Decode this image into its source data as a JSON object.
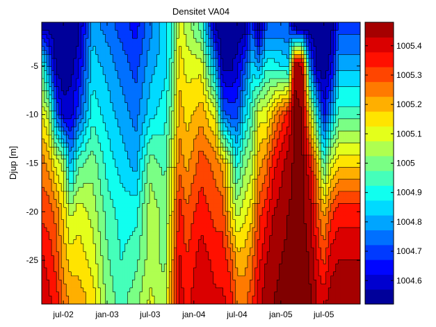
{
  "chart_data": {
    "type": "heatmap",
    "subtype": "filled-contour",
    "title": "Densitet VA04",
    "xlabel": "",
    "ylabel": "Djup [m]",
    "x_ticks": [
      "jul-02",
      "jan-03",
      "jul-03",
      "jan-04",
      "jul-04",
      "jan-05",
      "jul-05"
    ],
    "y_ticks": [
      -5,
      -10,
      -15,
      -20,
      -25
    ],
    "ylim": [
      -29.5,
      -0.5
    ],
    "colorbar": {
      "ticks": [
        "1005.4",
        "1005.3",
        "1005.2",
        "1005.1",
        "1005",
        "1004.9",
        "1004.8",
        "1004.7",
        "1004.6"
      ],
      "range": [
        1004.52,
        1005.48
      ],
      "colormap": "jet"
    },
    "depths": [
      -1,
      -5,
      -10,
      -15,
      -20,
      -25,
      -29
    ],
    "profiles": [
      {
        "date": "2002-04",
        "values": [
          1004.55,
          1004.95,
          1005.12,
          1005.25,
          1005.3,
          1005.38,
          1005.42
        ]
      },
      {
        "date": "2002-05",
        "values": [
          1004.55,
          1004.75,
          1005.05,
          1005.2,
          1005.3,
          1005.35,
          1005.38
        ]
      },
      {
        "date": "2002-06",
        "values": [
          1004.52,
          1004.55,
          1004.75,
          1005.1,
          1005.25,
          1005.3,
          1005.35
        ]
      },
      {
        "date": "2002-07",
        "values": [
          1004.52,
          1004.52,
          1004.6,
          1005.05,
          1005.15,
          1005.2,
          1005.25
        ]
      },
      {
        "date": "2002-08",
        "values": [
          1004.52,
          1004.55,
          1004.6,
          1004.8,
          1005.05,
          1005.15,
          1005.2
        ]
      },
      {
        "date": "2002-09",
        "values": [
          1004.55,
          1004.6,
          1004.7,
          1004.95,
          1005.1,
          1005.15,
          1005.2
        ]
      },
      {
        "date": "2002-11",
        "values": [
          1004.8,
          1004.85,
          1004.9,
          1005.0,
          1005.05,
          1005.1,
          1005.15
        ]
      },
      {
        "date": "2003-01",
        "values": [
          1004.75,
          1004.8,
          1004.85,
          1004.9,
          1004.95,
          1004.98,
          1005.0
        ]
      },
      {
        "date": "2003-03",
        "values": [
          1004.7,
          1004.75,
          1004.8,
          1004.85,
          1004.9,
          1004.92,
          1004.95
        ]
      },
      {
        "date": "2003-05",
        "values": [
          1004.65,
          1004.7,
          1004.75,
          1004.8,
          1004.9,
          1004.95,
          1005.0
        ]
      },
      {
        "date": "2003-07",
        "values": [
          1004.75,
          1004.8,
          1004.85,
          1005.0,
          1005.05,
          1005.05,
          1005.08
        ]
      },
      {
        "date": "2003-09",
        "values": [
          1004.85,
          1004.85,
          1004.9,
          1004.95,
          1005.0,
          1005.0,
          1005.05
        ]
      },
      {
        "date": "2003-10",
        "values": [
          1004.9,
          1004.95,
          1005.0,
          1005.1,
          1005.15,
          1005.2,
          1005.25
        ]
      },
      {
        "date": "2003-11",
        "values": [
          1005.1,
          1005.15,
          1005.2,
          1005.25,
          1005.35,
          1005.38,
          1005.4
        ]
      },
      {
        "date": "2003-12",
        "values": [
          1005.05,
          1005.1,
          1005.15,
          1005.2,
          1005.28,
          1005.32,
          1005.35
        ]
      },
      {
        "date": "2004-02",
        "values": [
          1004.95,
          1005.1,
          1005.2,
          1005.3,
          1005.35,
          1005.4,
          1005.42
        ]
      },
      {
        "date": "2004-04",
        "values": [
          1004.55,
          1004.8,
          1005.1,
          1005.25,
          1005.3,
          1005.35,
          1005.38
        ]
      },
      {
        "date": "2004-05",
        "values": [
          1004.52,
          1004.55,
          1004.75,
          1005.2,
          1005.3,
          1005.35,
          1005.38
        ]
      },
      {
        "date": "2004-06",
        "values": [
          1004.52,
          1004.55,
          1004.7,
          1005.05,
          1005.15,
          1005.3,
          1005.35
        ]
      },
      {
        "date": "2004-07",
        "values": [
          1004.52,
          1004.6,
          1004.7,
          1004.9,
          1005.05,
          1005.2,
          1005.25
        ]
      },
      {
        "date": "2004-08",
        "values": [
          1004.55,
          1004.7,
          1004.85,
          1005.0,
          1005.1,
          1005.2,
          1005.25
        ]
      },
      {
        "date": "2004-09",
        "values": [
          1004.7,
          1004.85,
          1004.95,
          1005.05,
          1005.15,
          1005.25,
          1005.3
        ]
      },
      {
        "date": "2004-10",
        "values": [
          1004.55,
          1004.8,
          1005.1,
          1005.2,
          1005.3,
          1005.35,
          1005.4
        ]
      },
      {
        "date": "2004-11",
        "values": [
          1004.72,
          1004.9,
          1005.1,
          1005.25,
          1005.35,
          1005.42,
          1005.45
        ]
      },
      {
        "date": "2004-12",
        "values": [
          1004.72,
          1004.9,
          1005.2,
          1005.35,
          1005.42,
          1005.46,
          1005.47
        ]
      },
      {
        "date": "2005-02",
        "values": [
          1004.72,
          1004.85,
          1005.35,
          1005.45,
          1005.47,
          1005.48,
          1005.48
        ]
      },
      {
        "date": "2005-03",
        "values": [
          1004.55,
          1005.46,
          1005.48,
          1005.48,
          1005.48,
          1005.48,
          1005.48
        ]
      },
      {
        "date": "2005-04",
        "values": [
          1004.52,
          1005.45,
          1005.47,
          1005.48,
          1005.48,
          1005.48,
          1005.48
        ]
      },
      {
        "date": "2005-05",
        "values": [
          1004.52,
          1004.8,
          1005.15,
          1005.38,
          1005.45,
          1005.47,
          1005.48
        ]
      },
      {
        "date": "2005-06",
        "values": [
          1004.52,
          1004.55,
          1004.9,
          1005.2,
          1005.3,
          1005.38,
          1005.42
        ]
      },
      {
        "date": "2005-07",
        "values": [
          1004.52,
          1004.52,
          1004.65,
          1004.95,
          1005.2,
          1005.3,
          1005.4
        ]
      },
      {
        "date": "2005-08",
        "values": [
          1004.55,
          1004.6,
          1004.8,
          1005.1,
          1005.3,
          1005.4,
          1005.45
        ]
      },
      {
        "date": "2005-09",
        "values": [
          1004.7,
          1004.8,
          1004.95,
          1005.15,
          1005.35,
          1005.42,
          1005.45
        ]
      }
    ],
    "grid": false,
    "legend": "colorbar-right"
  }
}
